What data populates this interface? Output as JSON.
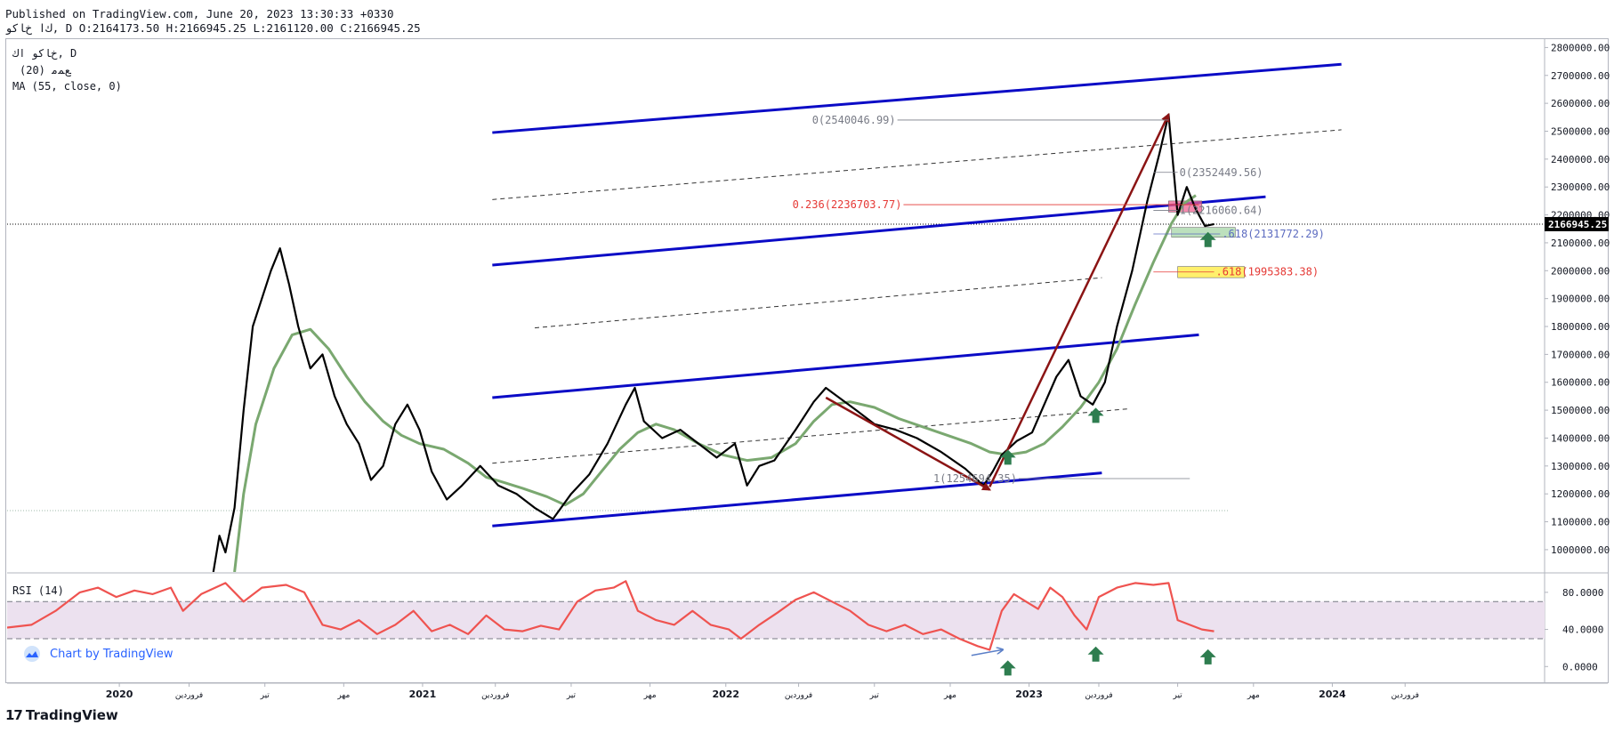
{
  "header": {
    "line1": "Published on TradingView.com, June 20, 2023 13:30:33 +0330",
    "line2": "ﻙﺍ ﺥﺎﻛﻮ, D O:2164173.50 H:2166945.25 L:2161120.00 C:2166945.25"
  },
  "legend": {
    "title": "ﺥﺎﻛﻮ ﺍﻙ, D",
    "ind1": "(20) ﻊﻤﻣ",
    "ind2": "MA (55, close, 0)",
    "rsi": "RSI (14)"
  },
  "colors": {
    "price": "#000000",
    "ma": "#7aa870",
    "channel": "#0b0bc6",
    "dashed": "#333333",
    "arrow": "#8b1414",
    "rsi_line": "#ef5350",
    "rsi_band": "#ece1ef",
    "up_arrow": "#2e7d4f",
    "fib_grey": "#787b86",
    "fib_red": "#e53935",
    "fib_blue": "#5c6bc0",
    "pink_box": "#f06292",
    "green_box": "#a5d6a7",
    "yellow_box": "#ffeb3b",
    "axis_text": "#131722"
  },
  "branding": {
    "chart_by": "Chart by TradingView",
    "logo_mark": "17",
    "name": "TradingView"
  },
  "chart_data": {
    "type": "line",
    "price_axis": {
      "ticks": [
        1000000,
        1100000,
        1200000,
        1300000,
        1400000,
        1500000,
        1600000,
        1700000,
        1800000,
        1900000,
        2000000,
        2100000,
        2200000,
        2300000,
        2400000,
        2500000,
        2600000,
        2700000,
        2800000
      ],
      "tick_labels": [
        "1000000.00",
        "1100000.00",
        "1200000.00",
        "1300000.00",
        "1400000.00",
        "1500000.00",
        "1600000.00",
        "1700000.00",
        "1800000.00",
        "1900000.00",
        "2000000.00",
        "2100000.00",
        "2200000.00",
        "2300000.00",
        "2400000.00",
        "2500000.00",
        "2600000.00",
        "2700000.00",
        "2800000.00"
      ],
      "range": [
        920000,
        2830000
      ],
      "current_price": 2166945.25,
      "current_label": "2166945.25"
    },
    "rsi_axis": {
      "ticks": [
        0,
        40,
        80
      ],
      "tick_labels": [
        "0.0000",
        "40.0000",
        "80.0000"
      ],
      "range": [
        -17,
        100
      ],
      "band": [
        30,
        70
      ]
    },
    "time_axis": {
      "range": [
        2019.62,
        2024.69
      ],
      "ticks": [
        {
          "t": 2019.99,
          "label": "2020",
          "bold": true
        },
        {
          "t": 2020.22,
          "label": "ﻓﺮﻭﺭﺩﯾﻦ",
          "bold": false
        },
        {
          "t": 2020.47,
          "label": "ﺗﯿﺮ",
          "bold": false
        },
        {
          "t": 2020.73,
          "label": "ﻣﻬﺮ",
          "bold": false
        },
        {
          "t": 2020.99,
          "label": "2021",
          "bold": true
        },
        {
          "t": 2021.23,
          "label": "ﻓﺮﻭﺭﺩﯾﻦ",
          "bold": false
        },
        {
          "t": 2021.48,
          "label": "ﺗﯿﺮ",
          "bold": false
        },
        {
          "t": 2021.74,
          "label": "ﻣﻬﺮ",
          "bold": false
        },
        {
          "t": 2021.99,
          "label": "2022",
          "bold": true
        },
        {
          "t": 2022.23,
          "label": "ﻓﺮﻭﺭﺩﯾﻦ",
          "bold": false
        },
        {
          "t": 2022.48,
          "label": "ﺗﯿﺮ",
          "bold": false
        },
        {
          "t": 2022.73,
          "label": "ﻣﻬﺮ",
          "bold": false
        },
        {
          "t": 2022.99,
          "label": "2023",
          "bold": true
        },
        {
          "t": 2023.22,
          "label": "ﻓﺮﻭﺭﺩﯾﻦ",
          "bold": false
        },
        {
          "t": 2023.48,
          "label": "ﺗﯿﺮ",
          "bold": false
        },
        {
          "t": 2023.73,
          "label": "ﻣﻬﺮ",
          "bold": false
        },
        {
          "t": 2023.99,
          "label": "2024",
          "bold": true
        },
        {
          "t": 2024.23,
          "label": "ﻓﺮﻭﺭﺩﯾﻦ",
          "bold": false
        }
      ]
    },
    "price_series": {
      "name": "",
      "points": [
        [
          2020.3,
          920000
        ],
        [
          2020.32,
          1050000
        ],
        [
          2020.34,
          990000
        ],
        [
          2020.37,
          1150000
        ],
        [
          2020.4,
          1500000
        ],
        [
          2020.43,
          1800000
        ],
        [
          2020.46,
          1900000
        ],
        [
          2020.49,
          2000000
        ],
        [
          2020.52,
          2080000
        ],
        [
          2020.55,
          1950000
        ],
        [
          2020.58,
          1800000
        ],
        [
          2020.62,
          1650000
        ],
        [
          2020.66,
          1700000
        ],
        [
          2020.7,
          1550000
        ],
        [
          2020.74,
          1450000
        ],
        [
          2020.78,
          1380000
        ],
        [
          2020.82,
          1250000
        ],
        [
          2020.86,
          1300000
        ],
        [
          2020.9,
          1450000
        ],
        [
          2020.94,
          1520000
        ],
        [
          2020.98,
          1430000
        ],
        [
          2021.02,
          1280000
        ],
        [
          2021.07,
          1180000
        ],
        [
          2021.12,
          1230000
        ],
        [
          2021.18,
          1300000
        ],
        [
          2021.24,
          1230000
        ],
        [
          2021.3,
          1200000
        ],
        [
          2021.36,
          1150000
        ],
        [
          2021.42,
          1110000
        ],
        [
          2021.48,
          1200000
        ],
        [
          2021.54,
          1270000
        ],
        [
          2021.6,
          1380000
        ],
        [
          2021.66,
          1520000
        ],
        [
          2021.69,
          1580000
        ],
        [
          2021.72,
          1460000
        ],
        [
          2021.78,
          1400000
        ],
        [
          2021.84,
          1430000
        ],
        [
          2021.9,
          1380000
        ],
        [
          2021.96,
          1330000
        ],
        [
          2022.02,
          1380000
        ],
        [
          2022.06,
          1230000
        ],
        [
          2022.1,
          1300000
        ],
        [
          2022.15,
          1320000
        ],
        [
          2022.22,
          1430000
        ],
        [
          2022.28,
          1530000
        ],
        [
          2022.32,
          1580000
        ],
        [
          2022.37,
          1540000
        ],
        [
          2022.42,
          1500000
        ],
        [
          2022.48,
          1450000
        ],
        [
          2022.55,
          1430000
        ],
        [
          2022.62,
          1400000
        ],
        [
          2022.7,
          1350000
        ],
        [
          2022.78,
          1290000
        ],
        [
          2022.84,
          1230000
        ],
        [
          2022.87,
          1280000
        ],
        [
          2022.9,
          1340000
        ],
        [
          2022.95,
          1390000
        ],
        [
          2023.0,
          1420000
        ],
        [
          2023.04,
          1520000
        ],
        [
          2023.08,
          1620000
        ],
        [
          2023.12,
          1680000
        ],
        [
          2023.16,
          1550000
        ],
        [
          2023.2,
          1520000
        ],
        [
          2023.24,
          1600000
        ],
        [
          2023.28,
          1800000
        ],
        [
          2023.33,
          2000000
        ],
        [
          2023.38,
          2250000
        ],
        [
          2023.42,
          2420000
        ],
        [
          2023.45,
          2560000
        ],
        [
          2023.48,
          2200000
        ],
        [
          2023.51,
          2300000
        ],
        [
          2023.54,
          2220000
        ],
        [
          2023.57,
          2160000
        ],
        [
          2023.6,
          2167000
        ]
      ]
    },
    "ma_series": {
      "name": "",
      "points": [
        [
          2020.37,
          920000
        ],
        [
          2020.4,
          1200000
        ],
        [
          2020.44,
          1450000
        ],
        [
          2020.5,
          1650000
        ],
        [
          2020.56,
          1770000
        ],
        [
          2020.62,
          1790000
        ],
        [
          2020.68,
          1720000
        ],
        [
          2020.74,
          1620000
        ],
        [
          2020.8,
          1530000
        ],
        [
          2020.86,
          1460000
        ],
        [
          2020.92,
          1410000
        ],
        [
          2020.98,
          1380000
        ],
        [
          2021.06,
          1360000
        ],
        [
          2021.14,
          1310000
        ],
        [
          2021.2,
          1260000
        ],
        [
          2021.26,
          1240000
        ],
        [
          2021.32,
          1220000
        ],
        [
          2021.4,
          1190000
        ],
        [
          2021.46,
          1160000
        ],
        [
          2021.52,
          1200000
        ],
        [
          2021.58,
          1280000
        ],
        [
          2021.64,
          1360000
        ],
        [
          2021.7,
          1420000
        ],
        [
          2021.76,
          1450000
        ],
        [
          2021.82,
          1430000
        ],
        [
          2021.9,
          1380000
        ],
        [
          2021.98,
          1340000
        ],
        [
          2022.06,
          1320000
        ],
        [
          2022.14,
          1330000
        ],
        [
          2022.22,
          1380000
        ],
        [
          2022.28,
          1460000
        ],
        [
          2022.34,
          1520000
        ],
        [
          2022.4,
          1530000
        ],
        [
          2022.48,
          1510000
        ],
        [
          2022.56,
          1470000
        ],
        [
          2022.64,
          1440000
        ],
        [
          2022.72,
          1410000
        ],
        [
          2022.8,
          1380000
        ],
        [
          2022.86,
          1350000
        ],
        [
          2022.92,
          1340000
        ],
        [
          2022.98,
          1350000
        ],
        [
          2023.04,
          1380000
        ],
        [
          2023.1,
          1440000
        ],
        [
          2023.16,
          1510000
        ],
        [
          2023.22,
          1600000
        ],
        [
          2023.28,
          1720000
        ],
        [
          2023.34,
          1880000
        ],
        [
          2023.4,
          2030000
        ],
        [
          2023.46,
          2170000
        ],
        [
          2023.5,
          2240000
        ],
        [
          2023.54,
          2270000
        ]
      ]
    },
    "rsi_series": {
      "name": "",
      "points": [
        [
          2019.62,
          42
        ],
        [
          2019.7,
          45
        ],
        [
          2019.78,
          60
        ],
        [
          2019.86,
          80
        ],
        [
          2019.92,
          85
        ],
        [
          2019.98,
          75
        ],
        [
          2020.04,
          82
        ],
        [
          2020.1,
          78
        ],
        [
          2020.16,
          85
        ],
        [
          2020.2,
          60
        ],
        [
          2020.26,
          78
        ],
        [
          2020.34,
          90
        ],
        [
          2020.4,
          70
        ],
        [
          2020.46,
          85
        ],
        [
          2020.54,
          88
        ],
        [
          2020.6,
          80
        ],
        [
          2020.66,
          45
        ],
        [
          2020.72,
          40
        ],
        [
          2020.78,
          50
        ],
        [
          2020.84,
          35
        ],
        [
          2020.9,
          45
        ],
        [
          2020.96,
          60
        ],
        [
          2021.02,
          38
        ],
        [
          2021.08,
          45
        ],
        [
          2021.14,
          35
        ],
        [
          2021.2,
          55
        ],
        [
          2021.26,
          40
        ],
        [
          2021.32,
          38
        ],
        [
          2021.38,
          44
        ],
        [
          2021.44,
          40
        ],
        [
          2021.5,
          70
        ],
        [
          2021.56,
          82
        ],
        [
          2021.62,
          85
        ],
        [
          2021.66,
          92
        ],
        [
          2021.7,
          60
        ],
        [
          2021.76,
          50
        ],
        [
          2021.82,
          45
        ],
        [
          2021.88,
          60
        ],
        [
          2021.94,
          45
        ],
        [
          2022.0,
          40
        ],
        [
          2022.04,
          30
        ],
        [
          2022.1,
          45
        ],
        [
          2022.16,
          58
        ],
        [
          2022.22,
          72
        ],
        [
          2022.28,
          80
        ],
        [
          2022.34,
          70
        ],
        [
          2022.4,
          60
        ],
        [
          2022.46,
          45
        ],
        [
          2022.52,
          38
        ],
        [
          2022.58,
          45
        ],
        [
          2022.64,
          35
        ],
        [
          2022.7,
          40
        ],
        [
          2022.76,
          30
        ],
        [
          2022.82,
          22
        ],
        [
          2022.86,
          18
        ],
        [
          2022.9,
          60
        ],
        [
          2022.94,
          78
        ],
        [
          2022.98,
          70
        ],
        [
          2023.02,
          62
        ],
        [
          2023.06,
          85
        ],
        [
          2023.1,
          75
        ],
        [
          2023.14,
          55
        ],
        [
          2023.18,
          40
        ],
        [
          2023.22,
          75
        ],
        [
          2023.28,
          85
        ],
        [
          2023.34,
          90
        ],
        [
          2023.4,
          88
        ],
        [
          2023.45,
          90
        ],
        [
          2023.48,
          50
        ],
        [
          2023.52,
          45
        ],
        [
          2023.56,
          40
        ],
        [
          2023.6,
          38
        ]
      ]
    },
    "channels": [
      {
        "kind": "solid",
        "from": [
          2021.22,
          2495000
        ],
        "to": [
          2024.02,
          2740000
        ]
      },
      {
        "kind": "solid",
        "from": [
          2021.22,
          2020000
        ],
        "to": [
          2023.77,
          2265000
        ]
      },
      {
        "kind": "solid",
        "from": [
          2021.22,
          1545000
        ],
        "to": [
          2023.55,
          1770000
        ]
      },
      {
        "kind": "solid",
        "from": [
          2021.22,
          1085000
        ],
        "to": [
          2023.23,
          1275000
        ]
      },
      {
        "kind": "dashed",
        "from": [
          2021.22,
          2255000
        ],
        "to": [
          2024.02,
          2505000
        ]
      },
      {
        "kind": "dashed",
        "from": [
          2021.36,
          1795000
        ],
        "to": [
          2023.23,
          1975000
        ]
      },
      {
        "kind": "dashed",
        "from": [
          2021.22,
          1310000
        ],
        "to": [
          2023.32,
          1505000
        ]
      }
    ],
    "arrows": [
      {
        "from": [
          2022.32,
          1545000
        ],
        "to": [
          2022.86,
          1215000
        ]
      },
      {
        "from": [
          2022.86,
          1225000
        ],
        "to": [
          2023.45,
          2560000
        ]
      }
    ],
    "fib_levels": [
      {
        "label": "0(2540046.99)",
        "value": 2540046.99,
        "color": "grey"
      },
      {
        "label": "0(2352449.56)",
        "value": 2352449.56,
        "color": "grey"
      },
      {
        "label": "0.236(2236703.77)",
        "value": 2236703.77,
        "color": "red"
      },
      {
        "label": "1(2216060.64)",
        "value": 2216060.64,
        "color": "grey"
      },
      {
        "label": ".618(2131772.29)",
        "value": 2131772.29,
        "color": "blue"
      },
      {
        "label": ".618(1995383.38)",
        "value": 1995383.38,
        "color": "red"
      },
      {
        "label": "1(1254694.35)",
        "value": 1254694.35,
        "color": "grey"
      }
    ],
    "zones": [
      {
        "color": "pink",
        "t0": 2023.45,
        "t1": 2023.56,
        "v0": 2210000,
        "v1": 2250000
      },
      {
        "color": "green",
        "t0": 2023.46,
        "t1": 2023.67,
        "v0": 2120000,
        "v1": 2155000
      },
      {
        "color": "yellow",
        "t0": 2023.48,
        "t1": 2023.7,
        "v0": 1975000,
        "v1": 2015000
      }
    ],
    "up_markers_price": [
      [
        2022.92,
        1330000
      ],
      [
        2023.21,
        1480000
      ],
      [
        2023.58,
        2110000
      ]
    ],
    "up_markers_rsi": [
      [
        2022.92,
        -2
      ],
      [
        2023.21,
        13
      ],
      [
        2023.58,
        10
      ]
    ],
    "rsi_arrow": {
      "from": [
        2022.8,
        12
      ],
      "to": [
        2022.9,
        18
      ]
    }
  }
}
